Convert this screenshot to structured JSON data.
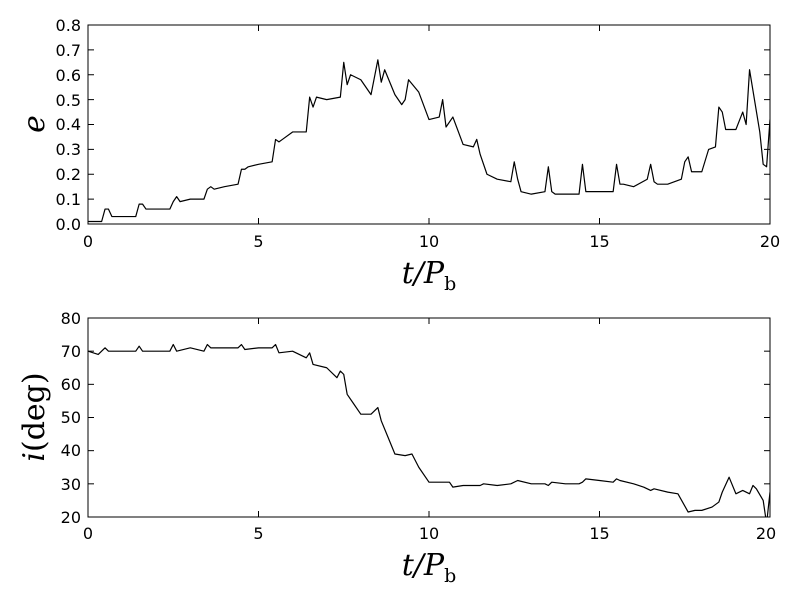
{
  "chart_data": [
    {
      "type": "line",
      "title": "",
      "xlabel": "t/P_b",
      "xlabel_main": "t/P",
      "xlabel_sub": "b",
      "ylabel": "e",
      "xlim": [
        0,
        20
      ],
      "ylim": [
        0,
        0.8
      ],
      "xticks": [
        "0",
        "5",
        "10",
        "15",
        "20"
      ],
      "yticks": [
        "0.0",
        "0.1",
        "0.2",
        "0.3",
        "0.4",
        "0.5",
        "0.6",
        "0.7",
        "0.8"
      ],
      "grid": false,
      "color": "#000000",
      "x": [
        0,
        0.4,
        0.5,
        0.6,
        0.7,
        1.0,
        1.4,
        1.5,
        1.6,
        1.7,
        2.0,
        2.4,
        2.5,
        2.6,
        2.7,
        3.0,
        3.4,
        3.5,
        3.6,
        3.7,
        4.0,
        4.4,
        4.5,
        4.6,
        4.7,
        5.0,
        5.4,
        5.5,
        5.6,
        5.7,
        6.0,
        6.4,
        6.5,
        6.6,
        6.7,
        7.0,
        7.4,
        7.5,
        7.6,
        7.7,
        8.0,
        8.3,
        8.5,
        8.6,
        8.7,
        9.0,
        9.2,
        9.3,
        9.4,
        9.7,
        10.0,
        10.3,
        10.4,
        10.5,
        10.7,
        11.0,
        11.3,
        11.4,
        11.5,
        11.7,
        12.0,
        12.4,
        12.5,
        12.6,
        12.7,
        13.0,
        13.4,
        13.5,
        13.6,
        13.7,
        14.0,
        14.4,
        14.5,
        14.6,
        14.7,
        15.0,
        15.4,
        15.5,
        15.6,
        15.7,
        16.0,
        16.4,
        16.5,
        16.6,
        16.7,
        17.0,
        17.4,
        17.5,
        17.6,
        17.7,
        18.0,
        18.2,
        18.4,
        18.5,
        18.6,
        18.7,
        19.0,
        19.2,
        19.3,
        19.4,
        19.7,
        19.8,
        19.9,
        20.0
      ],
      "y": [
        0.01,
        0.01,
        0.06,
        0.06,
        0.03,
        0.03,
        0.03,
        0.08,
        0.08,
        0.06,
        0.06,
        0.06,
        0.09,
        0.11,
        0.09,
        0.1,
        0.1,
        0.14,
        0.15,
        0.14,
        0.15,
        0.16,
        0.22,
        0.22,
        0.23,
        0.24,
        0.25,
        0.34,
        0.33,
        0.34,
        0.37,
        0.37,
        0.51,
        0.47,
        0.51,
        0.5,
        0.51,
        0.65,
        0.56,
        0.6,
        0.58,
        0.52,
        0.66,
        0.57,
        0.62,
        0.52,
        0.48,
        0.5,
        0.58,
        0.53,
        0.42,
        0.43,
        0.5,
        0.39,
        0.43,
        0.32,
        0.31,
        0.34,
        0.28,
        0.2,
        0.18,
        0.17,
        0.25,
        0.18,
        0.13,
        0.12,
        0.13,
        0.23,
        0.13,
        0.12,
        0.12,
        0.12,
        0.24,
        0.13,
        0.13,
        0.13,
        0.13,
        0.24,
        0.16,
        0.16,
        0.15,
        0.18,
        0.24,
        0.17,
        0.16,
        0.16,
        0.18,
        0.25,
        0.27,
        0.21,
        0.21,
        0.3,
        0.31,
        0.47,
        0.45,
        0.38,
        0.38,
        0.45,
        0.4,
        0.62,
        0.37,
        0.24,
        0.23,
        0.42
      ]
    },
    {
      "type": "line",
      "title": "",
      "xlabel": "t/P_b",
      "xlabel_main": "t/P",
      "xlabel_sub": "b",
      "ylabel": "i(deg)",
      "ylabel_var": "i",
      "ylabel_rest": "(deg)",
      "xlim": [
        0,
        20
      ],
      "ylim": [
        20,
        80
      ],
      "xticks": [
        "0",
        "5",
        "10",
        "15",
        "20"
      ],
      "yticks": [
        "20",
        "30",
        "40",
        "50",
        "60",
        "70",
        "80"
      ],
      "grid": false,
      "color": "#000000",
      "x": [
        0,
        0.3,
        0.5,
        0.6,
        1.0,
        1.4,
        1.5,
        1.6,
        2.0,
        2.4,
        2.5,
        2.6,
        3.0,
        3.4,
        3.5,
        3.6,
        4.0,
        4.4,
        4.5,
        4.6,
        5.0,
        5.4,
        5.5,
        5.6,
        6.0,
        6.4,
        6.5,
        6.6,
        7.0,
        7.3,
        7.4,
        7.5,
        7.6,
        7.8,
        8.0,
        8.3,
        8.5,
        8.6,
        8.8,
        9.0,
        9.3,
        9.5,
        9.7,
        10.0,
        10.3,
        10.6,
        10.7,
        11.0,
        11.5,
        11.6,
        12.0,
        12.4,
        12.6,
        13.0,
        13.4,
        13.5,
        13.6,
        14.0,
        14.4,
        14.5,
        14.6,
        15.0,
        15.4,
        15.5,
        15.6,
        16.0,
        16.3,
        16.5,
        16.6,
        17.0,
        17.3,
        17.6,
        17.8,
        18.0,
        18.3,
        18.5,
        18.6,
        18.8,
        19.0,
        19.2,
        19.4,
        19.5,
        19.6,
        19.8,
        19.9,
        20.0
      ],
      "y": [
        70,
        69,
        71,
        70,
        70,
        70,
        71.5,
        70,
        70,
        70,
        72,
        70,
        71,
        70,
        72,
        71,
        71,
        71,
        72,
        70.5,
        71,
        71,
        72,
        69.5,
        70,
        68,
        69.5,
        66,
        65,
        62,
        64,
        63,
        57,
        54,
        51,
        51,
        53,
        49,
        44,
        39,
        38.5,
        39,
        35,
        30.5,
        30.5,
        30.5,
        29,
        29.5,
        29.5,
        30,
        29.5,
        30,
        31,
        30,
        30,
        29.5,
        30.5,
        30,
        30,
        30.5,
        31.5,
        31,
        30.5,
        31.5,
        31,
        30,
        29,
        28,
        28.5,
        27.5,
        27,
        21.5,
        22,
        22,
        23,
        24.5,
        27.5,
        32,
        27,
        28,
        27,
        29.5,
        28.5,
        25,
        18,
        27.5
      ]
    }
  ]
}
